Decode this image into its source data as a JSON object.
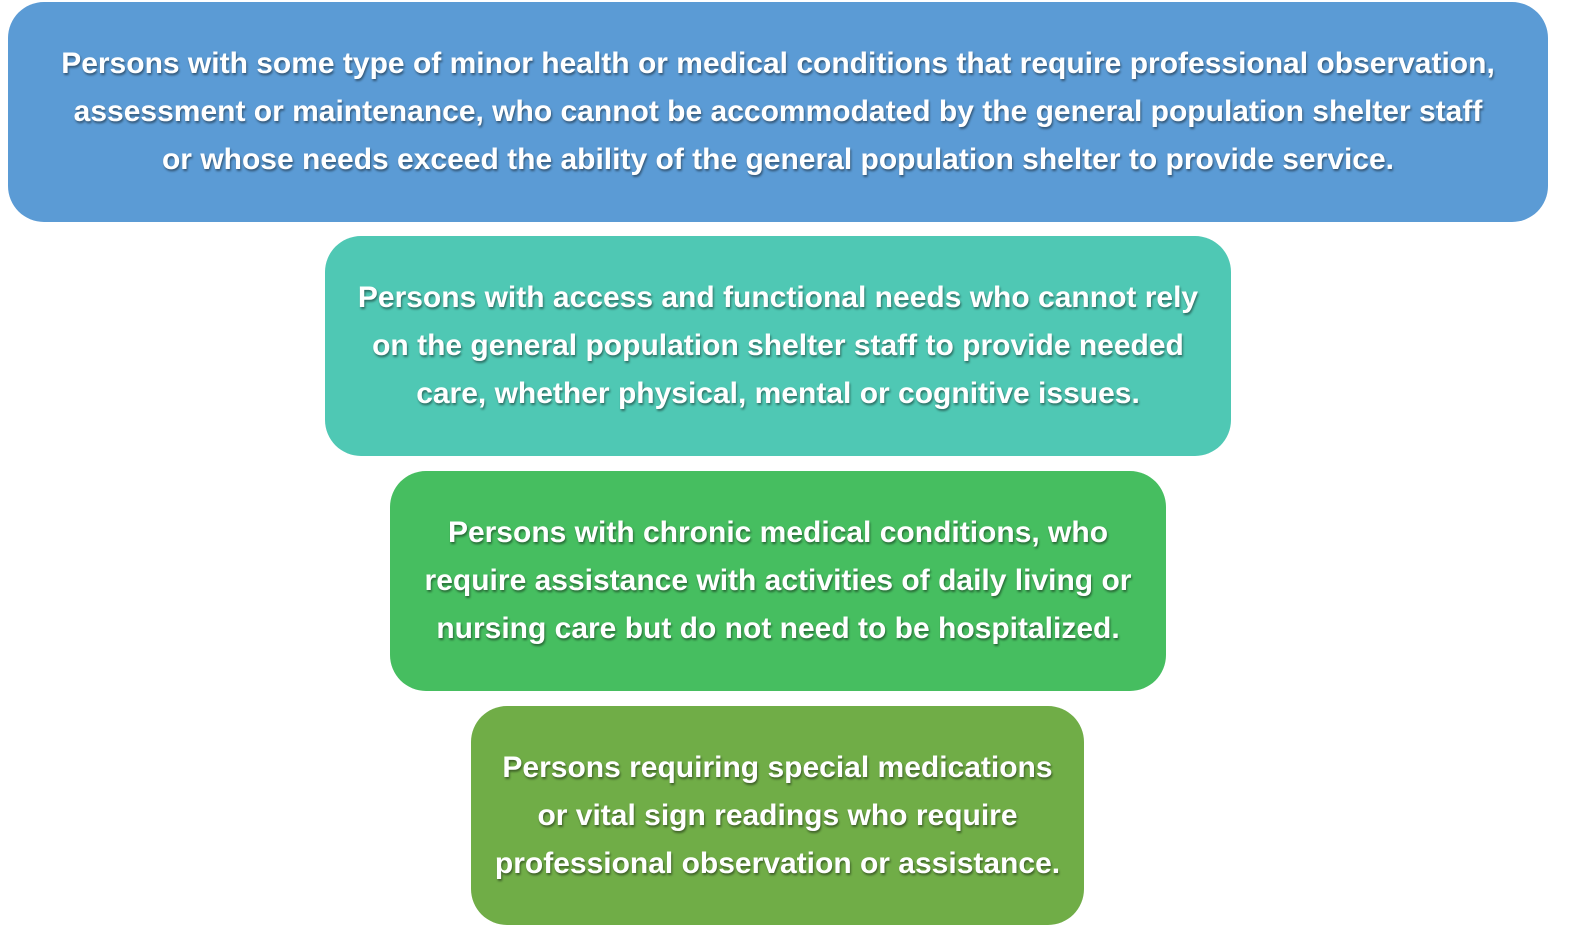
{
  "tiers": [
    {
      "text": "Persons with some type of minor health or medical conditions that require professional observation,\nassessment or maintenance, who cannot be accommodated by the general population shelter staff\nor whose needs exceed the ability of the general population shelter to provide service.",
      "color": "#5b9bd5"
    },
    {
      "text": "Persons with access and functional needs who cannot rely\non the general population shelter staff to provide needed\ncare, whether physical, mental or cognitive issues.",
      "color": "#4fc8b4"
    },
    {
      "text": "Persons with chronic medical conditions, who\nrequire assistance with activities of daily living or\nnursing care but do not need to be hospitalized.",
      "color": "#46be60"
    },
    {
      "text": "Persons requiring special medications\nor vital sign readings who require\nprofessional observation or assistance.",
      "color": "#70ad47"
    }
  ]
}
